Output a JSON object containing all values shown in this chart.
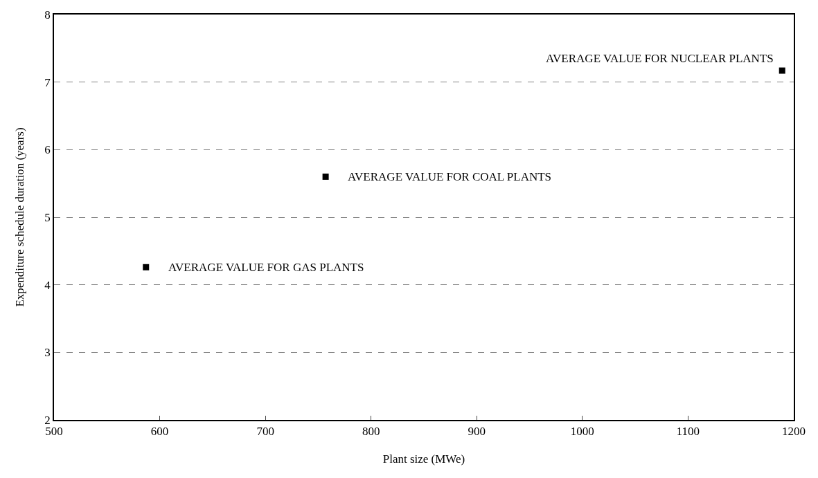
{
  "chart_data": {
    "type": "scatter",
    "xlabel": "Plant size (MWe)",
    "ylabel": "Expenditure schedule duration (years)",
    "x": [
      587,
      757,
      1189
    ],
    "series": [
      {
        "color": "#000000",
        "values": [
          4.26,
          5.6,
          7.17
        ]
      }
    ],
    "marker": "square",
    "xlim": [
      500,
      1200
    ],
    "xticks": [
      500,
      600,
      700,
      800,
      900,
      1000,
      1100,
      1200
    ],
    "ylim": [
      2,
      8
    ],
    "yticks": [
      2,
      3,
      4,
      5,
      6,
      7,
      8
    ],
    "grid": "y",
    "annotations": [
      {
        "text": "AVERAGE VALUE FOR GAS PLANTS",
        "x": 587,
        "y": 4.26
      },
      {
        "text": "AVERAGE VALUE FOR COAL PLANTS",
        "x": 757,
        "y": 5.6
      },
      {
        "text": "AVERAGE VALUE FOR NUCLEAR PLANTS",
        "x": 1189,
        "y": 7.17
      }
    ]
  }
}
